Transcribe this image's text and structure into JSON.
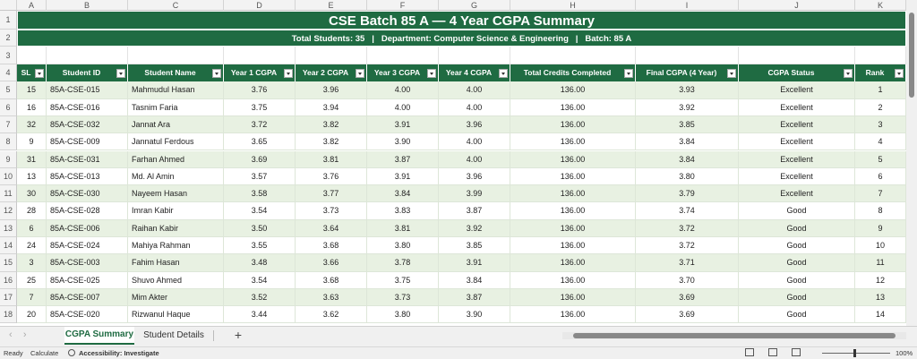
{
  "columns": [
    "A",
    "B",
    "C",
    "D",
    "E",
    "F",
    "G",
    "H",
    "I",
    "J",
    "K"
  ],
  "row_numbers": [
    "1",
    "2",
    "3",
    "4",
    "5",
    "6",
    "7",
    "8",
    "9",
    "10",
    "11",
    "12",
    "13",
    "14",
    "15",
    "16",
    "17",
    "18"
  ],
  "title": "CSE Batch 85 A — 4 Year CGPA Summary",
  "subtitle": "Total Students: 35   |   Department: Computer Science & Engineering   |   Batch: 85 A",
  "table": {
    "headers": [
      "SL",
      "Student ID",
      "Student Name",
      "Year 1 CGPA",
      "Year 2 CGPA",
      "Year 3 CGPA",
      "Year 4 CGPA",
      "Total Credits Completed",
      "Final CGPA (4 Year)",
      "CGPA Status",
      "Rank"
    ],
    "rows": [
      [
        "15",
        "85A-CSE-015",
        "Mahmudul Hasan",
        "3.76",
        "3.96",
        "4.00",
        "4.00",
        "136.00",
        "3.93",
        "Excellent",
        "1"
      ],
      [
        "16",
        "85A-CSE-016",
        "Tasnim Faria",
        "3.75",
        "3.94",
        "4.00",
        "4.00",
        "136.00",
        "3.92",
        "Excellent",
        "2"
      ],
      [
        "32",
        "85A-CSE-032",
        "Jannat Ara",
        "3.72",
        "3.82",
        "3.91",
        "3.96",
        "136.00",
        "3.85",
        "Excellent",
        "3"
      ],
      [
        "9",
        "85A-CSE-009",
        "Jannatul Ferdous",
        "3.65",
        "3.82",
        "3.90",
        "4.00",
        "136.00",
        "3.84",
        "Excellent",
        "4"
      ],
      [
        "31",
        "85A-CSE-031",
        "Farhan Ahmed",
        "3.69",
        "3.81",
        "3.87",
        "4.00",
        "136.00",
        "3.84",
        "Excellent",
        "5"
      ],
      [
        "13",
        "85A-CSE-013",
        "Md. Al Amin",
        "3.57",
        "3.76",
        "3.91",
        "3.96",
        "136.00",
        "3.80",
        "Excellent",
        "6"
      ],
      [
        "30",
        "85A-CSE-030",
        "Nayeem Hasan",
        "3.58",
        "3.77",
        "3.84",
        "3.99",
        "136.00",
        "3.79",
        "Excellent",
        "7"
      ],
      [
        "28",
        "85A-CSE-028",
        "Imran Kabir",
        "3.54",
        "3.73",
        "3.83",
        "3.87",
        "136.00",
        "3.74",
        "Good",
        "8"
      ],
      [
        "6",
        "85A-CSE-006",
        "Raihan Kabir",
        "3.50",
        "3.64",
        "3.81",
        "3.92",
        "136.00",
        "3.72",
        "Good",
        "9"
      ],
      [
        "24",
        "85A-CSE-024",
        "Mahiya Rahman",
        "3.55",
        "3.68",
        "3.80",
        "3.85",
        "136.00",
        "3.72",
        "Good",
        "10"
      ],
      [
        "3",
        "85A-CSE-003",
        "Fahim Hasan",
        "3.48",
        "3.66",
        "3.78",
        "3.91",
        "136.00",
        "3.71",
        "Good",
        "11"
      ],
      [
        "25",
        "85A-CSE-025",
        "Shuvo Ahmed",
        "3.54",
        "3.68",
        "3.75",
        "3.84",
        "136.00",
        "3.70",
        "Good",
        "12"
      ],
      [
        "7",
        "85A-CSE-007",
        "Mim Akter",
        "3.52",
        "3.63",
        "3.73",
        "3.87",
        "136.00",
        "3.69",
        "Good",
        "13"
      ],
      [
        "20",
        "85A-CSE-020",
        "Rizwanul Haque",
        "3.44",
        "3.62",
        "3.80",
        "3.90",
        "136.00",
        "3.69",
        "Good",
        "14"
      ]
    ]
  },
  "sheet_tabs": [
    "CGPA Summary",
    "Student Details"
  ],
  "status_bar": {
    "ready": "Ready",
    "calculate": "Calculate",
    "accessibility": "Accessibility: Investigate",
    "zoom": "100%"
  }
}
